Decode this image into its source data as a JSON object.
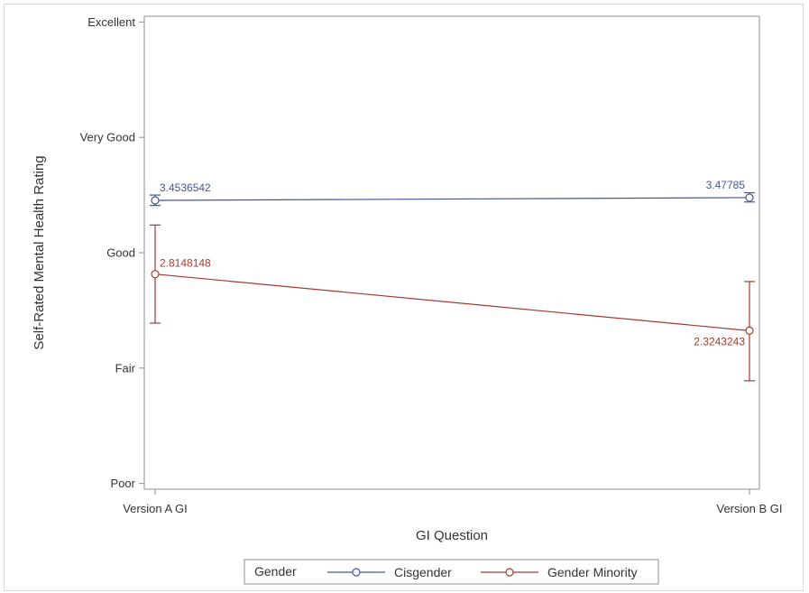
{
  "chart_data": {
    "type": "line",
    "xlabel": "GI Question",
    "ylabel": "Self-Rated Mental Health Rating",
    "categories": [
      "Version A GI",
      "Version B GI"
    ],
    "y_ticks": [
      {
        "value": 1,
        "label": "Poor"
      },
      {
        "value": 2,
        "label": "Fair"
      },
      {
        "value": 3,
        "label": "Good"
      },
      {
        "value": 4,
        "label": "Very Good"
      },
      {
        "value": 5,
        "label": "Excellent"
      }
    ],
    "ylim": [
      0.95,
      5.05
    ],
    "legend": {
      "title": "Gender",
      "placement": "bottom"
    },
    "series": [
      {
        "name": "Cisgender",
        "color": "#445694",
        "values": [
          3.4536542,
          3.47785
        ],
        "error_low": [
          3.41,
          3.44
        ],
        "error_high": [
          3.5,
          3.52
        ],
        "labels": [
          "3.4536542",
          "3.47785"
        ]
      },
      {
        "name": "Gender Minority",
        "color": "#a23a2e",
        "values": [
          2.8148148,
          2.3243243
        ],
        "error_low": [
          2.39,
          1.89
        ],
        "error_high": [
          3.24,
          2.75
        ],
        "labels": [
          "2.8148148",
          "2.3243243"
        ]
      }
    ]
  }
}
